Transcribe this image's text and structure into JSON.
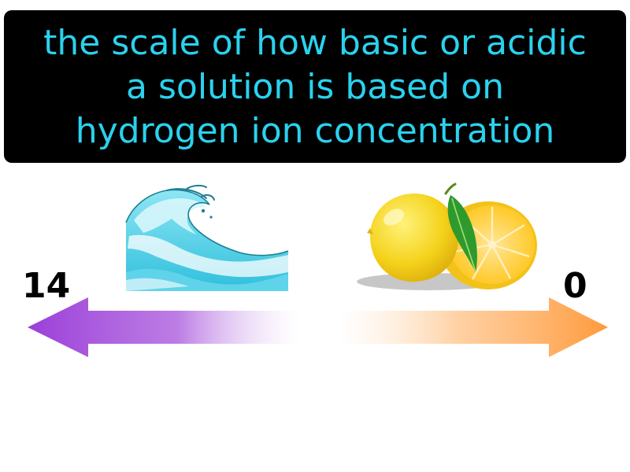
{
  "definition": {
    "lines": [
      "the scale of how basic or acidic",
      "a solution is based on",
      "hydrogen ion concentration"
    ]
  },
  "scale": {
    "basic_end_label": "14",
    "acidic_end_label": "0"
  },
  "colors": {
    "definition_text": "#2ad2ee",
    "definition_background": "#000000",
    "basic_arrow": "#9b3fd8",
    "acidic_arrow": "#ff9a3c"
  },
  "illustrations": {
    "basic_side": "ocean-wave-icon",
    "acidic_side": "lemon-icon"
  }
}
